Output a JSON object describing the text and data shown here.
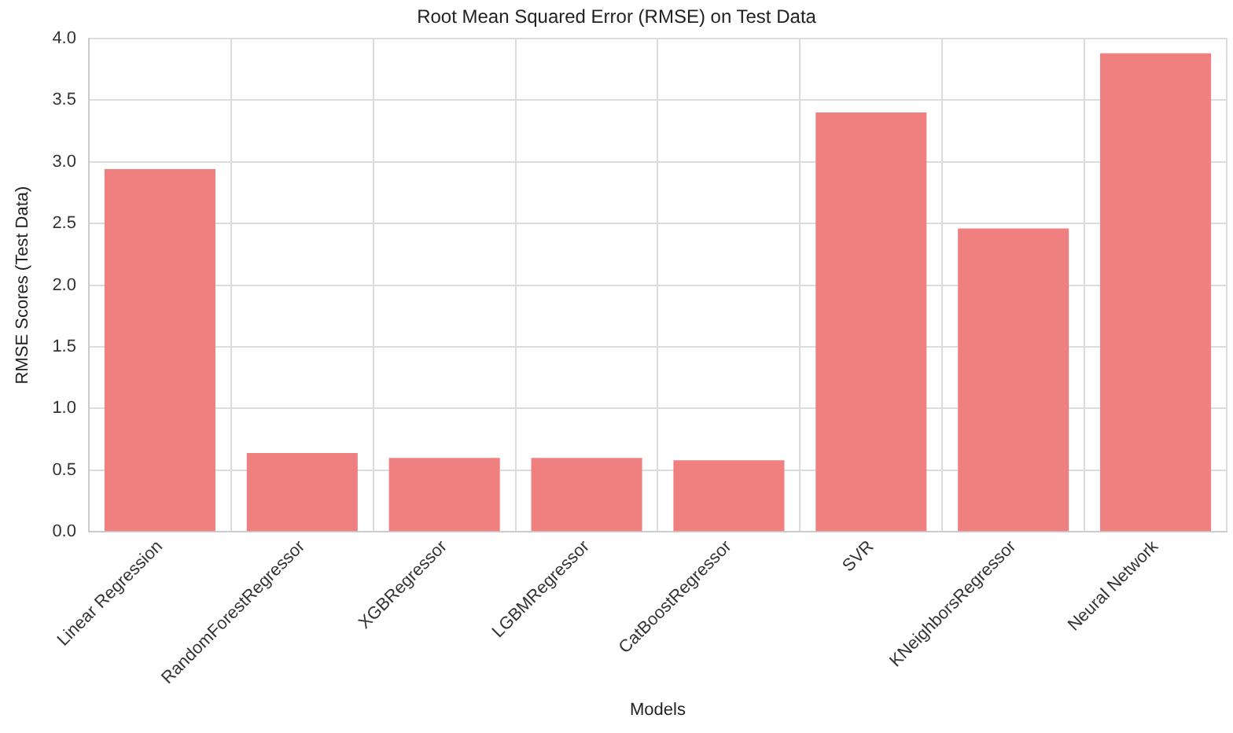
{
  "chart_data": {
    "type": "bar",
    "title": "Root Mean Squared Error (RMSE) on Test Data",
    "xlabel": "Models",
    "ylabel": "RMSE Scores (Test Data)",
    "categories": [
      "Linear Regression",
      "RandomForestRegressor",
      "XGBRegressor",
      "LGBMRegressor",
      "CatBoostRegressor",
      "SVR",
      "KNeighborsRegressor",
      "Neural Network"
    ],
    "values": [
      2.94,
      0.64,
      0.6,
      0.6,
      0.58,
      3.4,
      2.46,
      3.88
    ],
    "color": "#f08080",
    "ylim": [
      0,
      4.0
    ],
    "yticks": [
      {
        "value": 0,
        "label": "0.0"
      },
      {
        "value": 0.5,
        "label": "0.5"
      },
      {
        "value": 1,
        "label": "1.0"
      },
      {
        "value": 1.5,
        "label": "1.5"
      },
      {
        "value": 2,
        "label": "2.0"
      },
      {
        "value": 2.5,
        "label": "2.5"
      },
      {
        "value": 3,
        "label": "3.0"
      },
      {
        "value": 3.5,
        "label": "3.5"
      },
      {
        "value": 4,
        "label": "4.0"
      }
    ],
    "grid": true
  }
}
